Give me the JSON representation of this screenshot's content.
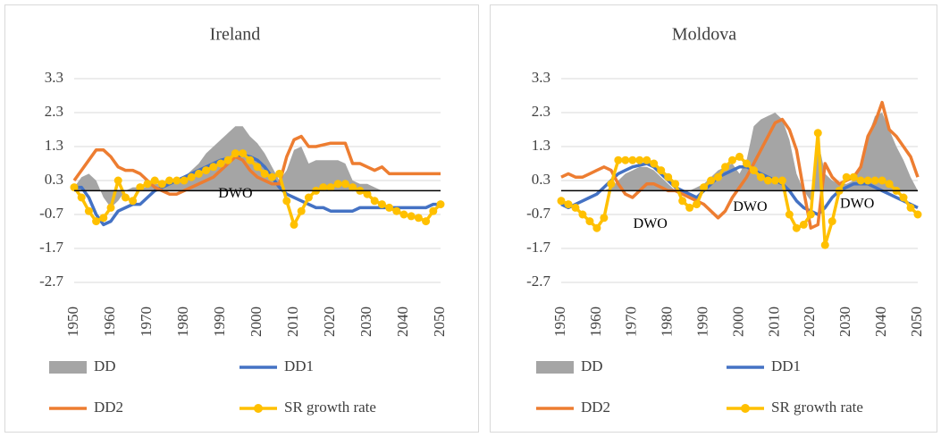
{
  "chart_data": [
    {
      "type": "line",
      "title": "Ireland",
      "x": [
        1950,
        1952,
        1954,
        1956,
        1958,
        1960,
        1962,
        1964,
        1966,
        1968,
        1970,
        1972,
        1974,
        1976,
        1978,
        1980,
        1982,
        1984,
        1986,
        1988,
        1990,
        1992,
        1994,
        1996,
        1998,
        2000,
        2002,
        2004,
        2006,
        2008,
        2010,
        2012,
        2014,
        2016,
        2018,
        2020,
        2022,
        2024,
        2026,
        2028,
        2030,
        2032,
        2034,
        2036,
        2038,
        2040,
        2042,
        2044,
        2046,
        2048,
        2050
      ],
      "xlim": [
        1950,
        2050
      ],
      "xticks": [
        1950,
        1960,
        1970,
        1980,
        1990,
        2000,
        2010,
        2020,
        2030,
        2040,
        2050
      ],
      "ylim": [
        -2.7,
        3.3
      ],
      "yticks": [
        -2.7,
        -1.7,
        -0.7,
        0.3,
        1.3,
        2.3,
        3.3
      ],
      "grid": true,
      "series": [
        {
          "name": "DD",
          "type": "area",
          "color": "#a5a5a5",
          "values": [
            0.1,
            0.4,
            0.5,
            0.3,
            -0.2,
            -0.5,
            -0.3,
            0,
            0.1,
            0.1,
            0.1,
            0.2,
            0.2,
            0.2,
            0.3,
            0.4,
            0.6,
            0.8,
            1.1,
            1.3,
            1.5,
            1.7,
            1.9,
            1.9,
            1.6,
            1.4,
            1.1,
            0.7,
            0.3,
            0.6,
            1.2,
            1.3,
            0.8,
            0.9,
            0.9,
            0.9,
            0.9,
            0.8,
            0.3,
            0.2,
            0.2,
            0.1,
            0,
            0,
            0,
            0,
            0,
            0,
            0,
            0,
            0
          ]
        },
        {
          "name": "DD1",
          "color": "#4472c4",
          "values": [
            0.1,
            0.1,
            -0.2,
            -0.7,
            -1.0,
            -0.9,
            -0.6,
            -0.5,
            -0.4,
            -0.4,
            -0.2,
            0,
            0.1,
            0.2,
            0.3,
            0.4,
            0.5,
            0.6,
            0.7,
            0.8,
            0.9,
            0.95,
            1.0,
            1.05,
            1.0,
            0.9,
            0.7,
            0.4,
            0.1,
            -0.1,
            -0.2,
            -0.3,
            -0.4,
            -0.5,
            -0.5,
            -0.6,
            -0.6,
            -0.6,
            -0.6,
            -0.5,
            -0.5,
            -0.5,
            -0.5,
            -0.5,
            -0.5,
            -0.5,
            -0.5,
            -0.5,
            -0.5,
            -0.4,
            -0.4
          ]
        },
        {
          "name": "DD2",
          "color": "#ed7d31",
          "values": [
            0.3,
            0.6,
            0.9,
            1.2,
            1.2,
            1.0,
            0.7,
            0.6,
            0.6,
            0.5,
            0.3,
            0.1,
            0,
            -0.1,
            -0.1,
            0,
            0.1,
            0.2,
            0.3,
            0.4,
            0.6,
            0.8,
            1.0,
            0.9,
            0.6,
            0.4,
            0.3,
            0.2,
            0.2,
            1.0,
            1.5,
            1.6,
            1.3,
            1.3,
            1.35,
            1.4,
            1.4,
            1.4,
            0.8,
            0.8,
            0.7,
            0.6,
            0.7,
            0.5,
            0.5,
            0.5,
            0.5,
            0.5,
            0.5,
            0.5,
            0.5
          ]
        },
        {
          "name": "SR growth rate",
          "color": "#ffc000",
          "markers": true,
          "values": [
            0.1,
            -0.2,
            -0.6,
            -0.9,
            -0.8,
            -0.5,
            0.3,
            -0.2,
            -0.3,
            0.1,
            0.2,
            0.3,
            0.2,
            0.3,
            0.3,
            0.3,
            0.4,
            0.5,
            0.6,
            0.7,
            0.8,
            0.9,
            1.1,
            1.1,
            0.9,
            0.7,
            0.5,
            0.4,
            0.5,
            -0.3,
            -1.0,
            -0.6,
            -0.2,
            0,
            0.1,
            0.1,
            0.2,
            0.2,
            0.1,
            0,
            -0.1,
            -0.3,
            -0.4,
            -0.5,
            -0.6,
            -0.7,
            -0.75,
            -0.8,
            -0.9,
            -0.6,
            -0.4
          ]
        }
      ],
      "annotations": [
        {
          "text": "DWO",
          "x": 1994,
          "y": -0.1
        }
      ]
    },
    {
      "type": "line",
      "title": "Moldova",
      "x": [
        1950,
        1952,
        1954,
        1956,
        1958,
        1960,
        1962,
        1964,
        1966,
        1968,
        1970,
        1972,
        1974,
        1976,
        1978,
        1980,
        1982,
        1984,
        1986,
        1988,
        1990,
        1992,
        1994,
        1996,
        1998,
        2000,
        2002,
        2004,
        2006,
        2008,
        2010,
        2012,
        2014,
        2016,
        2018,
        2020,
        2022,
        2024,
        2026,
        2028,
        2030,
        2032,
        2034,
        2036,
        2038,
        2040,
        2042,
        2044,
        2046,
        2048,
        2050
      ],
      "xlim": [
        1950,
        2050
      ],
      "xticks": [
        1950,
        1960,
        1970,
        1980,
        1990,
        2000,
        2010,
        2020,
        2030,
        2040,
        2050
      ],
      "ylim": [
        -2.7,
        3.3
      ],
      "yticks": [
        -2.7,
        -1.7,
        -0.7,
        0.3,
        1.3,
        2.3,
        3.3
      ],
      "grid": true,
      "series": [
        {
          "name": "DD",
          "type": "area",
          "color": "#a5a5a5",
          "values": [
            0,
            0,
            0,
            0,
            0,
            0,
            0,
            0.1,
            0.3,
            0.5,
            0.6,
            0.7,
            0.7,
            0.6,
            0.4,
            0.2,
            0,
            -0.1,
            0,
            0.1,
            0.2,
            0.4,
            0.6,
            0.7,
            0.8,
            0.5,
            0.9,
            1.9,
            2.1,
            2.2,
            2.3,
            2.1,
            1.5,
            0.5,
            0,
            -0.3,
            1.5,
            0.5,
            0.3,
            0.2,
            0.2,
            0.3,
            0.8,
            1.6,
            2.2,
            2.3,
            1.8,
            1.3,
            0.9,
            0.4,
            0
          ]
        },
        {
          "name": "DD1",
          "color": "#4472c4",
          "values": [
            -0.4,
            -0.5,
            -0.4,
            -0.3,
            -0.2,
            -0.1,
            0.1,
            0.3,
            0.5,
            0.6,
            0.7,
            0.75,
            0.8,
            0.7,
            0.5,
            0.3,
            0.1,
            0,
            -0.1,
            -0.2,
            0,
            0.2,
            0.4,
            0.5,
            0.6,
            0.7,
            0.7,
            0.6,
            0.5,
            0.4,
            0.3,
            0.2,
            0,
            -0.3,
            -0.5,
            -0.6,
            -0.7,
            -0.5,
            -0.2,
            0,
            0.1,
            0.2,
            0.2,
            0.2,
            0.1,
            0,
            -0.1,
            -0.2,
            -0.3,
            -0.4,
            -0.5
          ]
        },
        {
          "name": "DD2",
          "color": "#ed7d31",
          "values": [
            0.4,
            0.5,
            0.4,
            0.4,
            0.5,
            0.6,
            0.7,
            0.6,
            0.2,
            -0.1,
            -0.2,
            0,
            0.2,
            0.2,
            0.1,
            0,
            0,
            -0.1,
            -0.2,
            -0.3,
            -0.4,
            -0.6,
            -0.8,
            -0.6,
            -0.2,
            0.1,
            0.4,
            0.8,
            1.2,
            1.6,
            2.0,
            2.1,
            1.8,
            1.2,
            0,
            -1.1,
            -1.0,
            0.8,
            0.4,
            0.2,
            0.3,
            0.4,
            0.7,
            1.6,
            2.0,
            2.6,
            1.8,
            1.6,
            1.3,
            1.0,
            0.4
          ]
        },
        {
          "name": "SR growth rate",
          "color": "#ffc000",
          "markers": true,
          "values": [
            -0.3,
            -0.4,
            -0.5,
            -0.7,
            -0.9,
            -1.1,
            -0.8,
            0.2,
            0.9,
            0.9,
            0.9,
            0.9,
            0.9,
            0.8,
            0.6,
            0.4,
            0.2,
            -0.3,
            -0.5,
            -0.4,
            0.1,
            0.3,
            0.4,
            0.7,
            0.9,
            1.0,
            0.8,
            0.6,
            0.4,
            0.3,
            0.3,
            0.3,
            -0.7,
            -1.1,
            -1.0,
            -0.7,
            1.7,
            -1.6,
            -0.9,
            0,
            0.4,
            0.4,
            0.3,
            0.3,
            0.3,
            0.3,
            0.2,
            0,
            -0.2,
            -0.5,
            -0.7
          ]
        }
      ],
      "annotations": [
        {
          "text": "DWO",
          "x": 1975,
          "y": -1.0
        },
        {
          "text": "DWO",
          "x": 2003,
          "y": -0.5
        },
        {
          "text": "DWO",
          "x": 2033,
          "y": -0.4
        }
      ]
    }
  ]
}
